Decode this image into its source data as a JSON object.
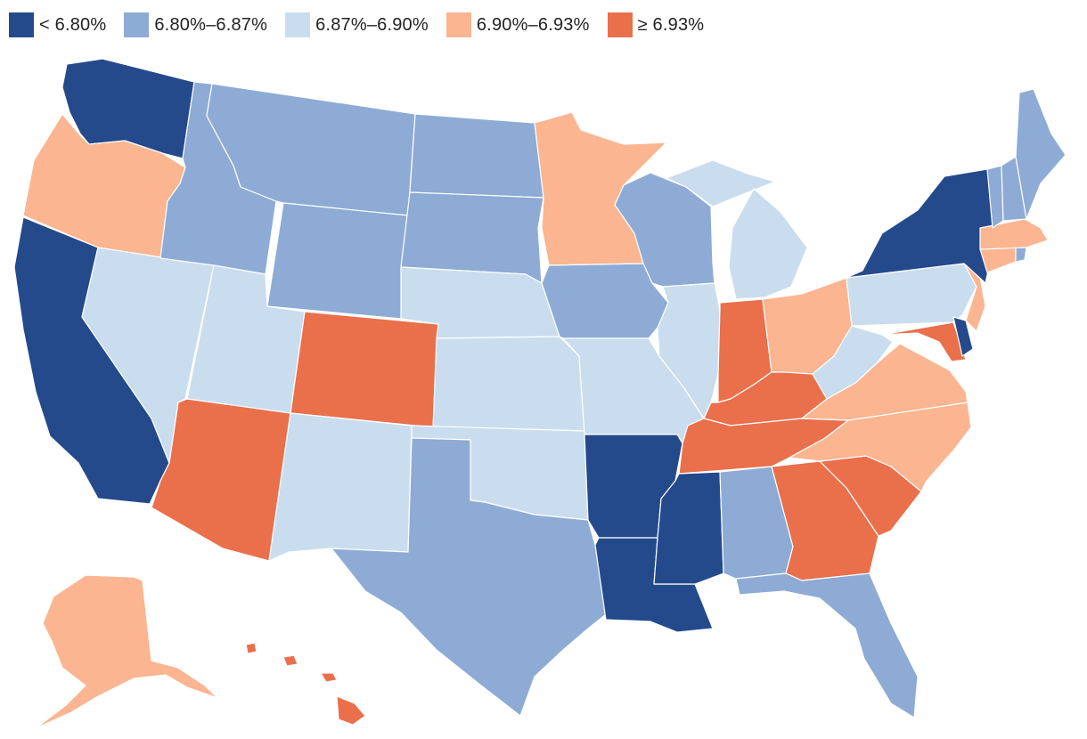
{
  "legend": {
    "items": [
      {
        "label": "< 6.80%",
        "color": "#244a8c"
      },
      {
        "label": "6.80%–6.87%",
        "color": "#8dabd5"
      },
      {
        "label": "6.87%–6.90%",
        "color": "#c9ddee"
      },
      {
        "label": "6.90%–6.93%",
        "color": "#fbb591"
      },
      {
        "label": "≥ 6.93%",
        "color": "#ea6f4b"
      }
    ]
  },
  "states": [
    {
      "name": "Washington",
      "bucket": 0
    },
    {
      "name": "Oregon",
      "bucket": 3
    },
    {
      "name": "California",
      "bucket": 0
    },
    {
      "name": "Nevada",
      "bucket": 2
    },
    {
      "name": "Idaho",
      "bucket": 1
    },
    {
      "name": "Montana",
      "bucket": 1
    },
    {
      "name": "Wyoming",
      "bucket": 1
    },
    {
      "name": "Utah",
      "bucket": 2
    },
    {
      "name": "Arizona",
      "bucket": 4
    },
    {
      "name": "Colorado",
      "bucket": 4
    },
    {
      "name": "New Mexico",
      "bucket": 2
    },
    {
      "name": "North Dakota",
      "bucket": 1
    },
    {
      "name": "South Dakota",
      "bucket": 1
    },
    {
      "name": "Nebraska",
      "bucket": 2
    },
    {
      "name": "Kansas",
      "bucket": 2
    },
    {
      "name": "Oklahoma",
      "bucket": 2
    },
    {
      "name": "Texas",
      "bucket": 1
    },
    {
      "name": "Minnesota",
      "bucket": 3
    },
    {
      "name": "Iowa",
      "bucket": 1
    },
    {
      "name": "Missouri",
      "bucket": 2
    },
    {
      "name": "Arkansas",
      "bucket": 0
    },
    {
      "name": "Louisiana",
      "bucket": 0
    },
    {
      "name": "Wisconsin",
      "bucket": 1
    },
    {
      "name": "Illinois",
      "bucket": 2
    },
    {
      "name": "Michigan",
      "bucket": 2
    },
    {
      "name": "Indiana",
      "bucket": 4
    },
    {
      "name": "Ohio",
      "bucket": 3
    },
    {
      "name": "Kentucky",
      "bucket": 4
    },
    {
      "name": "Tennessee",
      "bucket": 4
    },
    {
      "name": "Mississippi",
      "bucket": 0
    },
    {
      "name": "Alabama",
      "bucket": 1
    },
    {
      "name": "Georgia",
      "bucket": 4
    },
    {
      "name": "Florida",
      "bucket": 1
    },
    {
      "name": "South Carolina",
      "bucket": 4
    },
    {
      "name": "North Carolina",
      "bucket": 3
    },
    {
      "name": "Virginia",
      "bucket": 3
    },
    {
      "name": "West Virginia",
      "bucket": 2
    },
    {
      "name": "Pennsylvania",
      "bucket": 2
    },
    {
      "name": "New York",
      "bucket": 0
    },
    {
      "name": "Maryland",
      "bucket": 4
    },
    {
      "name": "Delaware",
      "bucket": 0
    },
    {
      "name": "New Jersey",
      "bucket": 3
    },
    {
      "name": "Connecticut",
      "bucket": 3
    },
    {
      "name": "Rhode Island",
      "bucket": 1
    },
    {
      "name": "Massachusetts",
      "bucket": 3
    },
    {
      "name": "Vermont",
      "bucket": 1
    },
    {
      "name": "New Hampshire",
      "bucket": 1
    },
    {
      "name": "Maine",
      "bucket": 1
    },
    {
      "name": "Alaska",
      "bucket": 3
    },
    {
      "name": "Hawaii",
      "bucket": 4
    }
  ]
}
